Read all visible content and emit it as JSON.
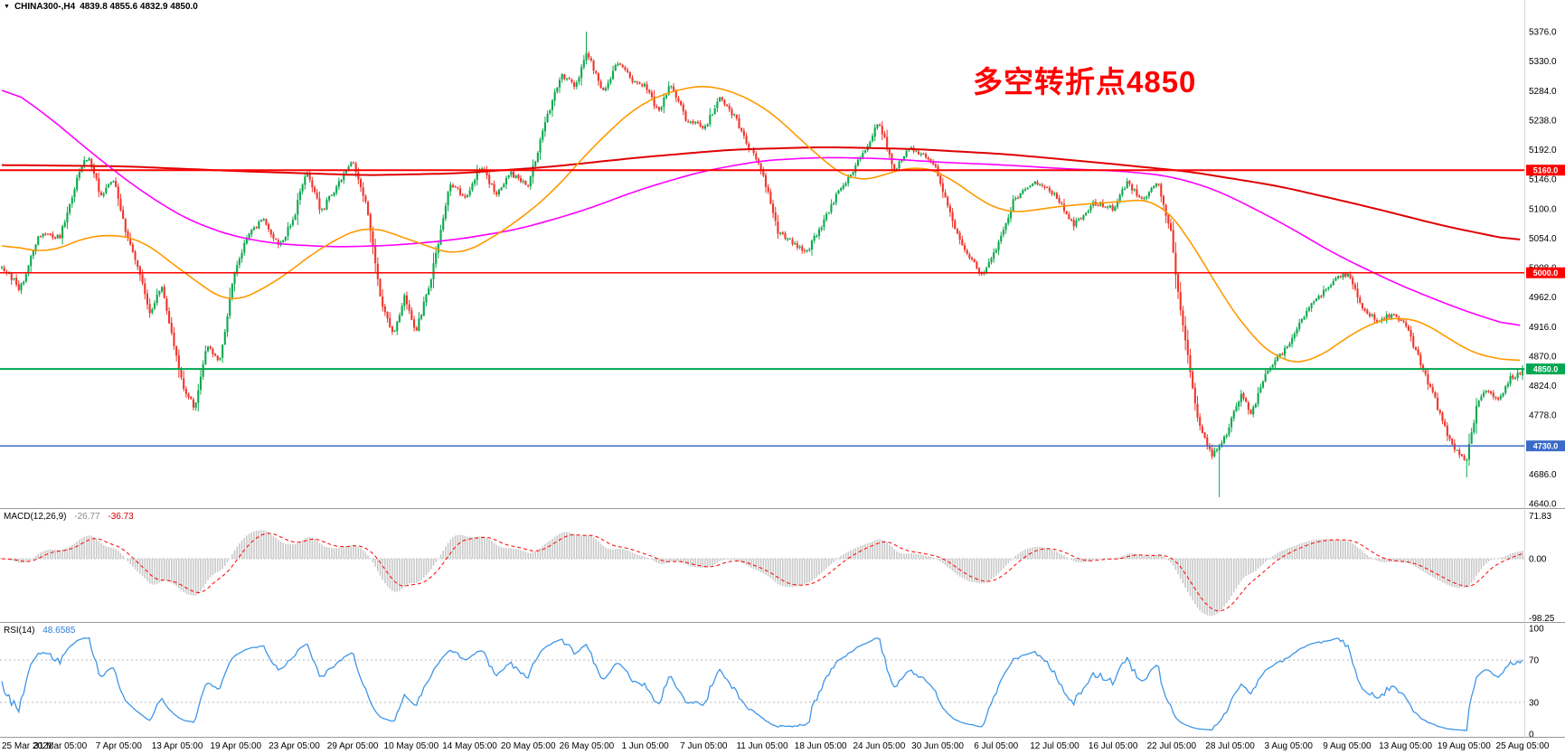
{
  "header": {
    "menu_icon": "▼",
    "symbol": "CHINA300-,H4",
    "ohlc": "4839.8 4855.6 4832.9 4850.0"
  },
  "annotation": {
    "text": "多空转折点4850",
    "color": "#FF0000"
  },
  "panes": {
    "macd": {
      "label": "MACD(12,26,9)",
      "value_main": "-26.77",
      "value_signal": "-36.73"
    },
    "rsi": {
      "label": "RSI(14)",
      "value": "48.6585"
    }
  },
  "chart_data": {
    "type": "candlestick",
    "symbol": "CHINA300-",
    "timeframe": "H4",
    "last_candle": {
      "open": 4839.8,
      "high": 4855.6,
      "low": 4832.9,
      "close": 4850.0
    },
    "y_range": [
      4640,
      5376
    ],
    "candle_count": 628,
    "price_axis_ticks": [
      "5376.0",
      "5330.0",
      "5284.0",
      "5238.0",
      "5192.0",
      "5146.0",
      "5100.0",
      "5054.0",
      "5008.0",
      "4962.0",
      "4916.0",
      "4870.0",
      "4824.0",
      "4778.0",
      "4732.0",
      "4686.0",
      "4640.0"
    ],
    "time_labels": [
      "25 Mar 2021",
      "31 Mar 05:00",
      "7 Apr 05:00",
      "13 Apr 05:00",
      "19 Apr 05:00",
      "23 Apr 05:00",
      "29 Apr 05:00",
      "10 May 05:00",
      "14 May 05:00",
      "20 May 05:00",
      "26 May 05:00",
      "1 Jun 05:00",
      "7 Jun 05:00",
      "11 Jun 05:00",
      "18 Jun 05:00",
      "24 Jun 05:00",
      "30 Jun 05:00",
      "6 Jul 05:00",
      "12 Jul 05:00",
      "16 Jul 05:00",
      "22 Jul 05:00",
      "28 Jul 05:00",
      "3 Aug 05:00",
      "9 Aug 05:00",
      "13 Aug 05:00",
      "19 Aug 05:00",
      "25 Aug 05:00"
    ],
    "levels": [
      {
        "price": 5160,
        "label": "5160.0",
        "color": "#FE0000",
        "width": 2
      },
      {
        "price": 5000,
        "label": "5000.0",
        "color": "#FE0000",
        "width": 1.5
      },
      {
        "price": 4850,
        "label": "4850.0",
        "color": "#00A651",
        "width": 2
      },
      {
        "price": 4730,
        "label": "4730.0",
        "color": "#3B6BC9",
        "width": 1.5
      }
    ],
    "price_path": [
      [
        0,
        5010
      ],
      [
        0.012,
        4975
      ],
      [
        0.025,
        5060
      ],
      [
        0.038,
        5055
      ],
      [
        0.05,
        5150
      ],
      [
        0.057,
        5185
      ],
      [
        0.065,
        5120
      ],
      [
        0.073,
        5150
      ],
      [
        0.082,
        5060
      ],
      [
        0.09,
        5000
      ],
      [
        0.098,
        4935
      ],
      [
        0.105,
        4985
      ],
      [
        0.112,
        4900
      ],
      [
        0.12,
        4815
      ],
      [
        0.127,
        4790
      ],
      [
        0.135,
        4890
      ],
      [
        0.143,
        4855
      ],
      [
        0.152,
        4990
      ],
      [
        0.162,
        5060
      ],
      [
        0.172,
        5085
      ],
      [
        0.182,
        5040
      ],
      [
        0.192,
        5085
      ],
      [
        0.2,
        5160
      ],
      [
        0.21,
        5095
      ],
      [
        0.22,
        5135
      ],
      [
        0.231,
        5175
      ],
      [
        0.24,
        5105
      ],
      [
        0.25,
        4945
      ],
      [
        0.258,
        4905
      ],
      [
        0.265,
        4965
      ],
      [
        0.272,
        4905
      ],
      [
        0.282,
        4990
      ],
      [
        0.295,
        5140
      ],
      [
        0.305,
        5115
      ],
      [
        0.315,
        5170
      ],
      [
        0.325,
        5120
      ],
      [
        0.335,
        5155
      ],
      [
        0.346,
        5135
      ],
      [
        0.357,
        5230
      ],
      [
        0.368,
        5310
      ],
      [
        0.377,
        5290
      ],
      [
        0.385,
        5345
      ],
      [
        0.395,
        5280
      ],
      [
        0.405,
        5330
      ],
      [
        0.415,
        5300
      ],
      [
        0.423,
        5290
      ],
      [
        0.432,
        5250
      ],
      [
        0.44,
        5295
      ],
      [
        0.45,
        5240
      ],
      [
        0.462,
        5225
      ],
      [
        0.472,
        5270
      ],
      [
        0.482,
        5245
      ],
      [
        0.49,
        5200
      ],
      [
        0.5,
        5160
      ],
      [
        0.51,
        5065
      ],
      [
        0.52,
        5045
      ],
      [
        0.53,
        5035
      ],
      [
        0.538,
        5070
      ],
      [
        0.55,
        5125
      ],
      [
        0.565,
        5180
      ],
      [
        0.577,
        5235
      ],
      [
        0.587,
        5160
      ],
      [
        0.597,
        5195
      ],
      [
        0.607,
        5180
      ],
      [
        0.615,
        5160
      ],
      [
        0.625,
        5080
      ],
      [
        0.635,
        5030
      ],
      [
        0.645,
        4995
      ],
      [
        0.654,
        5035
      ],
      [
        0.665,
        5110
      ],
      [
        0.678,
        5140
      ],
      [
        0.692,
        5125
      ],
      [
        0.705,
        5075
      ],
      [
        0.718,
        5110
      ],
      [
        0.731,
        5100
      ],
      [
        0.74,
        5140
      ],
      [
        0.75,
        5115
      ],
      [
        0.76,
        5140
      ],
      [
        0.769,
        5060
      ],
      [
        0.774,
        4960
      ],
      [
        0.78,
        4868
      ],
      [
        0.786,
        4780
      ],
      [
        0.791,
        4742
      ],
      [
        0.796,
        4716
      ],
      [
        0.803,
        4736
      ],
      [
        0.808,
        4766
      ],
      [
        0.815,
        4810
      ],
      [
        0.822,
        4780
      ],
      [
        0.832,
        4850
      ],
      [
        0.846,
        4885
      ],
      [
        0.855,
        4930
      ],
      [
        0.865,
        4960
      ],
      [
        0.875,
        4985
      ],
      [
        0.885,
        5000
      ],
      [
        0.895,
        4945
      ],
      [
        0.905,
        4925
      ],
      [
        0.915,
        4935
      ],
      [
        0.923,
        4920
      ],
      [
        0.932,
        4865
      ],
      [
        0.942,
        4805
      ],
      [
        0.95,
        4752
      ],
      [
        0.958,
        4716
      ],
      [
        0.963,
        4706
      ],
      [
        0.97,
        4792
      ],
      [
        0.976,
        4818
      ],
      [
        0.984,
        4800
      ],
      [
        0.992,
        4835
      ],
      [
        1,
        4848
      ]
    ],
    "key_extremes": [
      {
        "t": 0.385,
        "high": 5376
      },
      {
        "t": 0.8,
        "low": 4650
      },
      {
        "t": 0.963,
        "low": 4681
      }
    ],
    "moving_averages": [
      {
        "name": "ma-slow",
        "color": "#E00000",
        "width": 2,
        "points": [
          [
            0,
            5168
          ],
          [
            0.08,
            5166
          ],
          [
            0.16,
            5158
          ],
          [
            0.24,
            5152
          ],
          [
            0.3,
            5155
          ],
          [
            0.36,
            5165
          ],
          [
            0.42,
            5180
          ],
          [
            0.48,
            5192
          ],
          [
            0.54,
            5196
          ],
          [
            0.6,
            5193
          ],
          [
            0.66,
            5185
          ],
          [
            0.72,
            5172
          ],
          [
            0.78,
            5158
          ],
          [
            0.84,
            5135
          ],
          [
            0.9,
            5102
          ],
          [
            0.95,
            5072
          ],
          [
            1,
            5048
          ]
        ]
      },
      {
        "name": "ma-medium",
        "color": "#FF00FF",
        "width": 1.6,
        "points": [
          [
            0,
            5295
          ],
          [
            0.03,
            5245
          ],
          [
            0.06,
            5185
          ],
          [
            0.09,
            5130
          ],
          [
            0.12,
            5085
          ],
          [
            0.15,
            5058
          ],
          [
            0.18,
            5045
          ],
          [
            0.22,
            5040
          ],
          [
            0.26,
            5043
          ],
          [
            0.3,
            5052
          ],
          [
            0.34,
            5068
          ],
          [
            0.38,
            5095
          ],
          [
            0.42,
            5130
          ],
          [
            0.46,
            5158
          ],
          [
            0.5,
            5175
          ],
          [
            0.54,
            5180
          ],
          [
            0.58,
            5178
          ],
          [
            0.62,
            5172
          ],
          [
            0.66,
            5168
          ],
          [
            0.7,
            5162
          ],
          [
            0.74,
            5158
          ],
          [
            0.77,
            5150
          ],
          [
            0.8,
            5128
          ],
          [
            0.84,
            5080
          ],
          [
            0.88,
            5025
          ],
          [
            0.92,
            4980
          ],
          [
            0.96,
            4942
          ],
          [
            1,
            4912
          ]
        ]
      },
      {
        "name": "ma-fast",
        "color": "#FF9900",
        "width": 1.6,
        "points": [
          [
            0,
            5045
          ],
          [
            0.03,
            5030
          ],
          [
            0.06,
            5060
          ],
          [
            0.09,
            5055
          ],
          [
            0.12,
            5000
          ],
          [
            0.15,
            4950
          ],
          [
            0.18,
            4985
          ],
          [
            0.21,
            5040
          ],
          [
            0.24,
            5075
          ],
          [
            0.27,
            5050
          ],
          [
            0.3,
            5025
          ],
          [
            0.33,
            5065
          ],
          [
            0.36,
            5120
          ],
          [
            0.39,
            5200
          ],
          [
            0.42,
            5265
          ],
          [
            0.45,
            5290
          ],
          [
            0.47,
            5292
          ],
          [
            0.5,
            5262
          ],
          [
            0.52,
            5220
          ],
          [
            0.54,
            5175
          ],
          [
            0.56,
            5140
          ],
          [
            0.58,
            5152
          ],
          [
            0.6,
            5168
          ],
          [
            0.62,
            5155
          ],
          [
            0.64,
            5118
          ],
          [
            0.66,
            5092
          ],
          [
            0.68,
            5098
          ],
          [
            0.7,
            5105
          ],
          [
            0.72,
            5108
          ],
          [
            0.74,
            5112
          ],
          [
            0.76,
            5115
          ],
          [
            0.78,
            5058
          ],
          [
            0.8,
            4975
          ],
          [
            0.82,
            4905
          ],
          [
            0.84,
            4862
          ],
          [
            0.86,
            4858
          ],
          [
            0.88,
            4892
          ],
          [
            0.9,
            4922
          ],
          [
            0.92,
            4933
          ],
          [
            0.94,
            4918
          ],
          [
            0.96,
            4882
          ],
          [
            0.98,
            4866
          ],
          [
            1,
            4862
          ]
        ]
      }
    ],
    "indicators": {
      "macd": {
        "fast": 12,
        "slow": 26,
        "signal": 9,
        "current_main": -26.77,
        "current_signal": -36.73,
        "axis_range": [
          -98.25,
          71.83
        ],
        "axis_ticks": [
          {
            "label": "71.83",
            "value": 71.83
          },
          {
            "label": "0.00",
            "value": 0
          },
          {
            "label": "-98.25",
            "value": -98.25
          }
        ]
      },
      "rsi": {
        "period": 14,
        "current": 48.6585,
        "axis_range": [
          0,
          100
        ],
        "levels": [
          70,
          30
        ],
        "axis_ticks": [
          {
            "label": "100",
            "value": 100
          },
          {
            "label": "70",
            "value": 70
          },
          {
            "label": "30",
            "value": 30
          },
          {
            "label": "0",
            "value": 0
          }
        ]
      }
    },
    "colors": {
      "up": "#0DA84E",
      "down": "#F0352B",
      "macd_hist": "#C9C9C9",
      "macd_signal": "#FF0000",
      "rsi_line": "#3E96E8",
      "separator": "#999999",
      "axis_text": "#000000"
    }
  }
}
